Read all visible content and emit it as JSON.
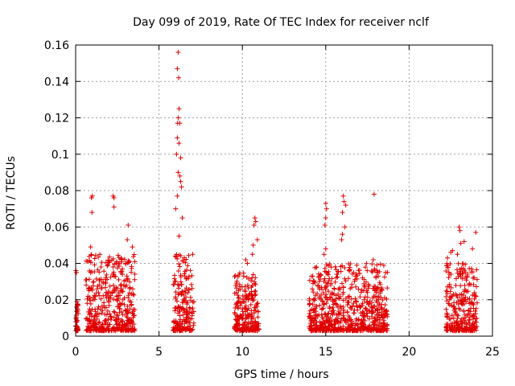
{
  "chart_data": {
    "type": "scatter",
    "title": "Day 099 of 2019, Rate Of TEC Index for receiver nclf",
    "xlabel": "GPS time / hours",
    "ylabel": "ROTI / TECUs",
    "xlim": [
      0,
      25
    ],
    "ylim": [
      0,
      0.16
    ],
    "xticks": [
      0,
      5,
      10,
      15,
      20,
      25
    ],
    "xtick_labels": [
      "0",
      "5",
      "10",
      "15",
      "20",
      "25"
    ],
    "yticks": [
      0,
      0.02,
      0.04,
      0.06,
      0.08,
      0.1,
      0.12,
      0.14,
      0.16
    ],
    "ytick_labels": [
      "0",
      "0.02",
      "0.04",
      "0.06",
      "0.08",
      "0.1",
      "0.12",
      "0.14",
      "0.16"
    ],
    "grid": true,
    "marker": "plus",
    "marker_color": "#e00000",
    "series": [
      {
        "name": "ROTI",
        "clusters": [
          {
            "x_start": 0.0,
            "x_end": 0.15,
            "typical_max": 0.018,
            "peaks": [
              [
                0.02,
                0.036
              ],
              [
                0.05,
                0.035
              ],
              [
                0.08,
                0.019
              ]
            ]
          },
          {
            "x_start": 0.6,
            "x_end": 3.55,
            "typical_max": 0.045,
            "peaks": [
              [
                0.95,
                0.076
              ],
              [
                1.0,
                0.077
              ],
              [
                0.98,
                0.068
              ],
              [
                2.25,
                0.077
              ],
              [
                2.3,
                0.076
              ],
              [
                2.3,
                0.071
              ],
              [
                3.15,
                0.061
              ],
              [
                3.1,
                0.053
              ],
              [
                3.4,
                0.049
              ],
              [
                0.9,
                0.049
              ]
            ]
          },
          {
            "x_start": 5.85,
            "x_end": 7.1,
            "typical_max": 0.045,
            "peaks": [
              [
                6.15,
                0.156
              ],
              [
                6.1,
                0.147
              ],
              [
                6.18,
                0.142
              ],
              [
                6.2,
                0.125
              ],
              [
                6.15,
                0.12
              ],
              [
                6.12,
                0.117
              ],
              [
                6.25,
                0.117
              ],
              [
                6.1,
                0.109
              ],
              [
                6.2,
                0.106
              ],
              [
                6.05,
                0.1
              ],
              [
                6.3,
                0.098
              ],
              [
                6.15,
                0.09
              ],
              [
                6.25,
                0.088
              ],
              [
                6.3,
                0.085
              ],
              [
                6.35,
                0.082
              ],
              [
                6.1,
                0.077
              ],
              [
                6.0,
                0.07
              ],
              [
                6.4,
                0.065
              ],
              [
                6.2,
                0.055
              ]
            ]
          },
          {
            "x_start": 9.5,
            "x_end": 11.0,
            "typical_max": 0.035,
            "peaks": [
              [
                10.75,
                0.065
              ],
              [
                10.8,
                0.063
              ],
              [
                10.7,
                0.061
              ],
              [
                10.9,
                0.053
              ],
              [
                10.65,
                0.05
              ],
              [
                10.6,
                0.045
              ],
              [
                10.2,
                0.042
              ],
              [
                10.3,
                0.04
              ]
            ]
          },
          {
            "x_start": 14.0,
            "x_end": 18.7,
            "typical_max": 0.04,
            "peaks": [
              [
                15.0,
                0.073
              ],
              [
                15.05,
                0.07
              ],
              [
                16.05,
                0.077
              ],
              [
                16.1,
                0.074
              ],
              [
                16.2,
                0.072
              ],
              [
                16.0,
                0.068
              ],
              [
                15.0,
                0.065
              ],
              [
                14.95,
                0.061
              ],
              [
                16.15,
                0.06
              ],
              [
                16.0,
                0.056
              ],
              [
                15.95,
                0.053
              ],
              [
                15.0,
                0.048
              ],
              [
                14.9,
                0.045
              ],
              [
                17.9,
                0.078
              ],
              [
                17.85,
                0.042
              ]
            ]
          },
          {
            "x_start": 22.2,
            "x_end": 24.1,
            "typical_max": 0.04,
            "peaks": [
              [
                23.0,
                0.06
              ],
              [
                23.05,
                0.058
              ],
              [
                24.0,
                0.057
              ],
              [
                23.3,
                0.052
              ],
              [
                23.1,
                0.051
              ],
              [
                22.6,
                0.047
              ],
              [
                22.5,
                0.046
              ],
              [
                22.3,
                0.043
              ],
              [
                23.8,
                0.048
              ],
              [
                22.9,
                0.045
              ]
            ]
          }
        ]
      }
    ]
  }
}
